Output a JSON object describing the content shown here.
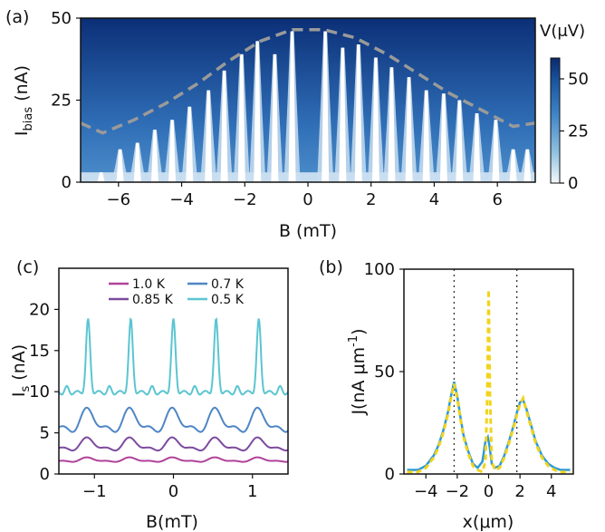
{
  "chart_data": [
    {
      "panel": "(a)",
      "type": "heatmap",
      "xlabel": "B (mT)",
      "ylabel_main": "I",
      "ylabel_sub": "bias",
      "ylabel_unit": " (nA)",
      "xlim": [
        -7.2,
        7.2
      ],
      "ylim": [
        0,
        50
      ],
      "xticks": [
        -6,
        -4,
        -2,
        0,
        2,
        4,
        6
      ],
      "yticks": [
        0,
        25,
        50
      ],
      "colorbar": {
        "label": "V(μV)",
        "ticks": [
          0,
          25,
          50
        ],
        "range": [
          0,
          60
        ]
      },
      "critical_current_peaks": [
        {
          "B": -6.55,
          "Ic": 3
        },
        {
          "B": -5.95,
          "Ic": 10
        },
        {
          "B": -5.4,
          "Ic": 12
        },
        {
          "B": -4.85,
          "Ic": 16
        },
        {
          "B": -4.3,
          "Ic": 19
        },
        {
          "B": -3.75,
          "Ic": 23
        },
        {
          "B": -3.15,
          "Ic": 28
        },
        {
          "B": -2.65,
          "Ic": 34
        },
        {
          "B": -2.1,
          "Ic": 39
        },
        {
          "B": -1.6,
          "Ic": 43
        },
        {
          "B": -1.05,
          "Ic": 39
        },
        {
          "B": -0.5,
          "Ic": 46
        },
        {
          "B": 0.55,
          "Ic": 46
        },
        {
          "B": 1.1,
          "Ic": 41
        },
        {
          "B": 1.6,
          "Ic": 42
        },
        {
          "B": 2.15,
          "Ic": 38
        },
        {
          "B": 2.65,
          "Ic": 35
        },
        {
          "B": 3.2,
          "Ic": 32
        },
        {
          "B": 3.75,
          "Ic": 28
        },
        {
          "B": 4.3,
          "Ic": 27
        },
        {
          "B": 4.8,
          "Ic": 25
        },
        {
          "B": 5.35,
          "Ic": 21
        },
        {
          "B": 5.95,
          "Ic": 19
        },
        {
          "B": 6.5,
          "Ic": 10
        },
        {
          "B": 6.95,
          "Ic": 10
        }
      ],
      "envelope_dashed": {
        "B": [
          -7.2,
          -6.5,
          -5.5,
          -4.5,
          -3.5,
          -2.5,
          -1.5,
          -0.5,
          0.5,
          1.5,
          2.5,
          3.5,
          4.5,
          5.5,
          6.5,
          7.2
        ],
        "Ic": [
          18,
          15,
          19,
          24,
          30,
          37,
          43,
          46.5,
          46.5,
          44,
          39,
          33,
          27,
          22,
          17,
          18
        ]
      }
    },
    {
      "panel": "(c)",
      "type": "line",
      "ylabel_main": "I",
      "ylabel_sub": "s",
      "ylabel_unit": " (nA)",
      "xlabel": "B(mT)",
      "xlim": [
        -1.45,
        1.45
      ],
      "ylim": [
        0,
        25
      ],
      "xticks": [
        -1,
        0,
        1
      ],
      "yticks": [
        0,
        5,
        10,
        15,
        20
      ],
      "legend_location": "top",
      "period_mT": 0.54,
      "series": [
        {
          "name": "1.0 K",
          "color": "#b0429a",
          "baseline": 1.7,
          "amplitude": 0.45
        },
        {
          "name": "0.85 K",
          "color": "#7d4a9e",
          "baseline": 3.5,
          "amplitude": 1.3
        },
        {
          "name": "0.7 K",
          "color": "#4e86c4",
          "baseline": 6.3,
          "amplitude": 2.4
        },
        {
          "name": "0.5 K",
          "color": "#5bc5d1",
          "baseline": 9.5,
          "amplitude": 10.0
        }
      ]
    },
    {
      "panel": "(b)",
      "type": "line",
      "ylabel": "J(nA μm",
      "ylabel_sup": "-1",
      "ylabel_end": ")",
      "xlabel": "x(μm)",
      "xlim": [
        -5.4,
        5.4
      ],
      "ylim": [
        0,
        100
      ],
      "xticks": [
        -4,
        -2,
        0,
        2,
        4
      ],
      "yticks": [
        0,
        50,
        100
      ],
      "vlines": [
        -2.2,
        1.8
      ],
      "series": [
        {
          "name": "",
          "color": "#2e9ad6",
          "style": "solid",
          "x": [
            -5.2,
            -4.5,
            -4.0,
            -3.5,
            -3.2,
            -2.9,
            -2.6,
            -2.4,
            -2.2,
            -2.0,
            -1.8,
            -1.6,
            -1.3,
            -1.0,
            -0.7,
            -0.4,
            -0.2,
            -0.05,
            0.05,
            0.2,
            0.4,
            0.7,
            1.0,
            1.3,
            1.6,
            1.8,
            2.0,
            2.2,
            2.4,
            2.7,
            3.0,
            3.4,
            3.8,
            4.2,
            4.6,
            5.2
          ],
          "y": [
            2,
            2,
            4,
            9,
            14,
            21,
            30,
            38,
            45,
            38,
            28,
            19,
            11,
            5,
            3,
            6,
            16,
            18,
            14,
            5,
            3,
            4,
            9,
            16,
            24,
            30,
            35,
            36,
            32,
            24,
            16,
            9,
            5,
            3,
            2,
            2
          ]
        },
        {
          "name": "",
          "color": "#f2d31b",
          "style": "dashed",
          "x": [
            -5.2,
            -4.5,
            -4.0,
            -3.5,
            -3.2,
            -2.9,
            -2.6,
            -2.4,
            -2.2,
            -2.0,
            -1.8,
            -1.6,
            -1.3,
            -1.0,
            -0.7,
            -0.4,
            -0.2,
            -0.08,
            0.0,
            0.08,
            0.2,
            0.4,
            0.7,
            1.0,
            1.3,
            1.6,
            1.8,
            2.0,
            2.2,
            2.4,
            2.7,
            3.0,
            3.4,
            3.8,
            4.2,
            4.6,
            5.2
          ],
          "y": [
            1,
            1,
            3,
            8,
            13,
            20,
            29,
            37,
            44,
            37,
            27,
            18,
            10,
            4,
            2,
            1,
            6,
            40,
            90,
            40,
            6,
            2,
            3,
            8,
            15,
            23,
            29,
            34,
            37,
            31,
            23,
            15,
            8,
            4,
            2,
            1,
            1
          ]
        }
      ]
    }
  ]
}
